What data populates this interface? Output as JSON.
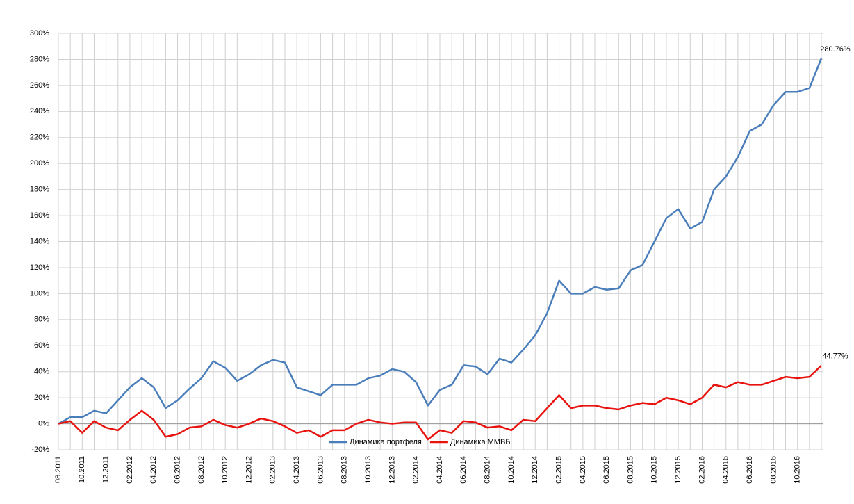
{
  "chart_data": {
    "type": "line",
    "categories": [
      "08.2011",
      null,
      "10.2011",
      null,
      "12.2011",
      null,
      "02.2012",
      null,
      "04.2012",
      null,
      "06.2012",
      null,
      "08.2012",
      null,
      "10.2012",
      null,
      "12.2012",
      null,
      "02.2013",
      null,
      "04.2013",
      null,
      "06.2013",
      null,
      "08.2013",
      null,
      "10.2013",
      null,
      "12.2013",
      null,
      "02.2014",
      null,
      "04.2014",
      null,
      "06.2014",
      null,
      "08.2014",
      null,
      "10.2014",
      null,
      "12.2014",
      null,
      "02.2015",
      null,
      "04.2015",
      null,
      "06.2015",
      null,
      "08.2015",
      null,
      "10.2015",
      null,
      "12.2015",
      null,
      "02.2016",
      null,
      "04.2016",
      null,
      "06.2016",
      null,
      "08.2016",
      null,
      "10.2016",
      null,
      null
    ],
    "series": [
      {
        "name": "Динамика портфеля",
        "color": "#4a7ebb",
        "values": [
          0,
          5,
          5,
          10,
          8,
          18,
          28,
          35,
          28,
          12,
          18,
          27,
          35,
          48,
          43,
          33,
          38,
          45,
          49,
          47,
          28,
          25,
          22,
          30,
          30,
          30,
          35,
          37,
          42,
          40,
          32,
          14,
          26,
          30,
          45,
          44,
          38,
          50,
          47,
          57,
          68,
          85,
          110,
          100,
          100,
          105,
          103,
          104,
          118,
          122,
          140,
          158,
          165,
          150,
          155,
          180,
          190,
          205,
          225,
          230,
          245,
          255,
          255,
          258,
          280.76
        ],
        "value_labels": [
          null,
          null,
          null,
          null,
          null,
          null,
          null,
          null,
          null,
          null,
          null,
          null,
          null,
          null,
          null,
          null,
          null,
          null,
          null,
          null,
          null,
          null,
          null,
          null,
          null,
          null,
          null,
          null,
          null,
          null,
          null,
          null,
          null,
          null,
          null,
          null,
          null,
          null,
          null,
          null,
          null,
          null,
          null,
          null,
          null,
          null,
          null,
          null,
          null,
          null,
          null,
          null,
          null,
          null,
          null,
          null,
          null,
          null,
          null,
          null,
          null,
          null,
          null,
          null,
          "280.76%"
        ]
      },
      {
        "name": "Динамика ММВБ",
        "color": "#e8130f",
        "values": [
          0,
          2,
          -7,
          2,
          -3,
          -5,
          3,
          10,
          3,
          -10,
          -8,
          -3,
          -2,
          3,
          -1,
          -3,
          0,
          4,
          2,
          -2,
          -7,
          -5,
          -10,
          -5,
          -5,
          0,
          3,
          1,
          0,
          1,
          1,
          -12,
          -5,
          -7,
          2,
          1,
          -3,
          -2,
          -5,
          3,
          2,
          12,
          22,
          12,
          14,
          14,
          12,
          11,
          14,
          16,
          15,
          20,
          18,
          15,
          20,
          30,
          28,
          32,
          30,
          30,
          33,
          36,
          35,
          36,
          44.77
        ],
        "value_labels": [
          null,
          null,
          null,
          null,
          null,
          null,
          null,
          null,
          null,
          null,
          null,
          null,
          null,
          null,
          null,
          null,
          null,
          null,
          null,
          null,
          null,
          null,
          null,
          null,
          null,
          null,
          null,
          null,
          null,
          null,
          null,
          null,
          null,
          null,
          null,
          null,
          null,
          null,
          null,
          null,
          null,
          null,
          null,
          null,
          null,
          null,
          null,
          null,
          null,
          null,
          null,
          null,
          null,
          null,
          null,
          null,
          null,
          null,
          null,
          null,
          null,
          null,
          null,
          null,
          "44.77%"
        ]
      }
    ],
    "ylim": [
      -20,
      300
    ],
    "yticks": [
      {
        "value": -20,
        "label": "-20%"
      },
      {
        "value": 0,
        "label": "0%"
      },
      {
        "value": 20,
        "label": "20%"
      },
      {
        "value": 40,
        "label": "40%"
      },
      {
        "value": 60,
        "label": "60%"
      },
      {
        "value": 80,
        "label": "80%"
      },
      {
        "value": 100,
        "label": "100%"
      },
      {
        "value": 120,
        "label": "120%"
      },
      {
        "value": 140,
        "label": "140%"
      },
      {
        "value": 160,
        "label": "160%"
      },
      {
        "value": 180,
        "label": "180%"
      },
      {
        "value": 200,
        "label": "200%"
      },
      {
        "value": 220,
        "label": "220%"
      },
      {
        "value": 240,
        "label": "240%"
      },
      {
        "value": 260,
        "label": "260%"
      },
      {
        "value": 280,
        "label": "280%"
      },
      {
        "value": 300,
        "label": "300%"
      }
    ],
    "grid": true,
    "legend": "bottom"
  }
}
